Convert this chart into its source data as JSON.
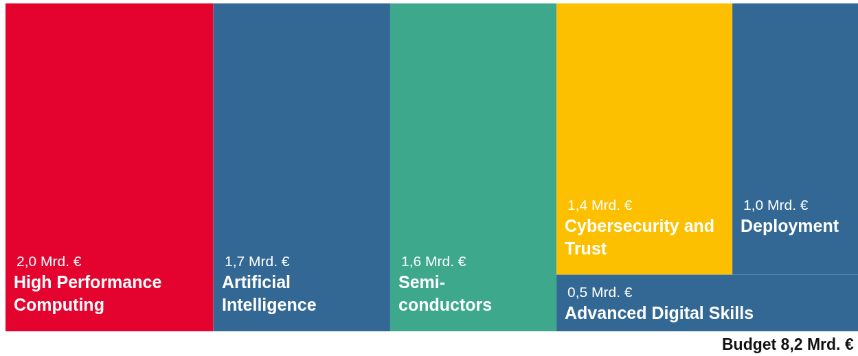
{
  "chart_data": {
    "type": "other",
    "categories": [
      "High Performance\nComputing",
      "Artificial\nIntelligence",
      "Semi-\nconductors",
      "Cybersecurity and\nTrust",
      "Deployment",
      "Advanced Digital Skills"
    ],
    "values": [
      2.0,
      1.7,
      1.6,
      1.4,
      1.0,
      0.5
    ],
    "value_labels": [
      "2,0 Mrd. €",
      "1,7 Mrd. €",
      "1,6 Mrd. €",
      "1,4 Mrd. €",
      "1,0 Mrd. €",
      "0,5 Mrd. €"
    ],
    "colors": [
      "#e4032e",
      "#336894",
      "#3ea88c",
      "#fcc000",
      "#336894",
      "#336894"
    ],
    "annotations": [
      "Budget 8,2 Mrd. €"
    ]
  }
}
